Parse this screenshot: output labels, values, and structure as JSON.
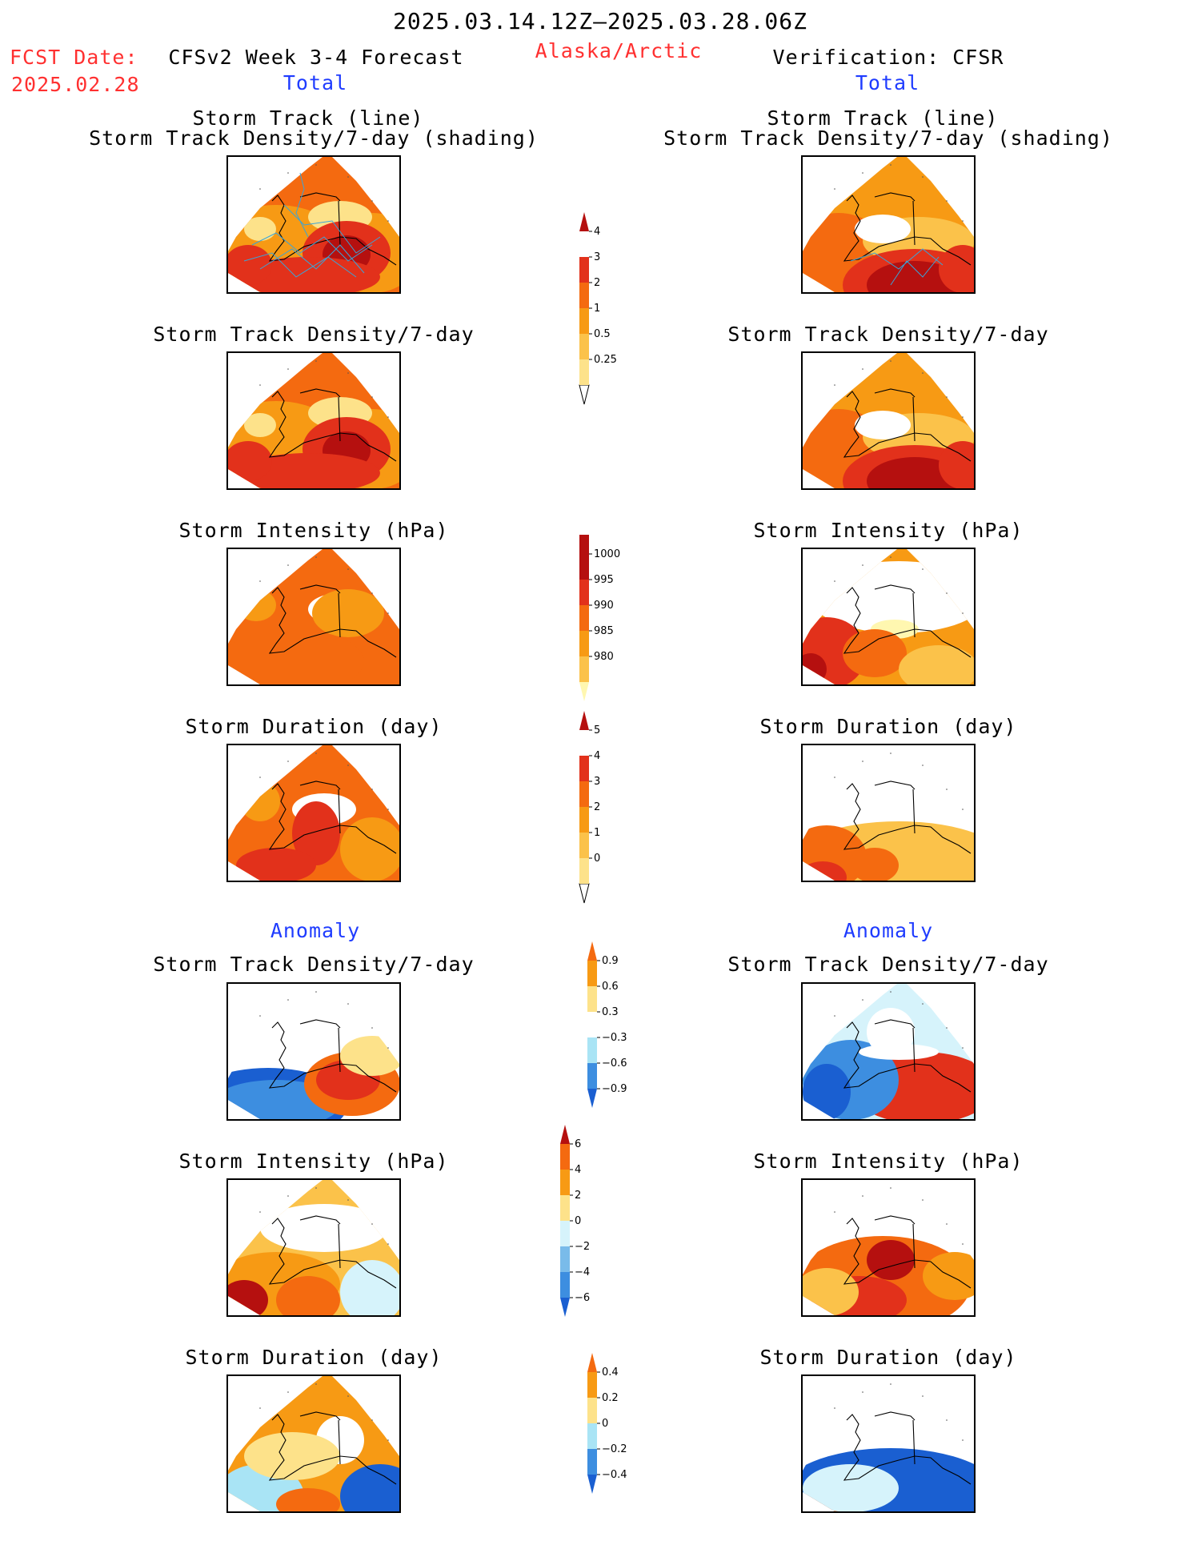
{
  "header": {
    "title": "2025.03.14.12Z—2025.03.28.06Z",
    "region": "Alaska/Arctic",
    "fcst_label": "FCST Date:",
    "fcst_date": "2025.02.28",
    "left_title": "CFSv2 Week 3-4 Forecast",
    "right_title": "Verification: CFSR",
    "left_total": "Total",
    "right_total": "Total"
  },
  "sections": {
    "anomaly_left": "Anomaly",
    "anomaly_right": "Anomaly"
  },
  "panel_titles": {
    "track_line": "Storm Track (line)",
    "track_shading": "Storm Track Density/7-day (shading)",
    "density": "Storm Track Density/7-day",
    "intensity": "Storm Intensity (hPa)",
    "duration": "Storm Duration (day)"
  },
  "colorbars": {
    "density_total": [
      "4",
      "3",
      "2",
      "1",
      "0.5",
      "0.25"
    ],
    "intensity_total": [
      "1000",
      "995",
      "990",
      "985",
      "980"
    ],
    "duration_total": [
      "5",
      "4",
      "3",
      "2",
      "1",
      "0"
    ],
    "density_anom": [
      "0.9",
      "0.6",
      "0.3",
      "−0.3",
      "−0.6",
      "−0.9"
    ],
    "intensity_anom": [
      "6",
      "4",
      "2",
      "0",
      "−2",
      "−4",
      "−6"
    ],
    "duration_anom": [
      "0.4",
      "0.2",
      "0",
      "−0.2",
      "−0.4"
    ]
  },
  "colors": {
    "title_red": "#ff3030",
    "label_blue": "#1f3cff",
    "warm_scale": [
      "#fff7b0",
      "#fde28a",
      "#fbc24a",
      "#f79a14",
      "#f46a10",
      "#e2311b",
      "#b5100f"
    ],
    "cool_scale": [
      "#d6f3fb",
      "#a9e4f5",
      "#79bbea",
      "#3d8ee0",
      "#1a5fd1"
    ]
  }
}
